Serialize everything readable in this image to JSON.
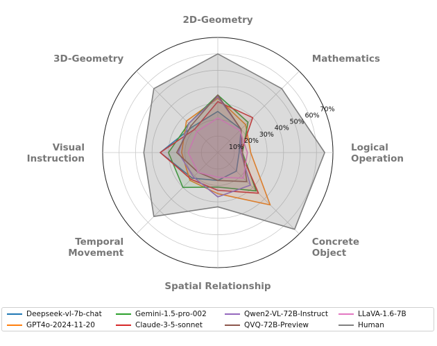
{
  "chart_data": {
    "type": "radar",
    "title": "",
    "axes": [
      "2D-Geometry",
      "Mathematics",
      "Logical\nOperation",
      "Concrete\nObject",
      "Spatial Relationship",
      "Temporal\nMovement",
      "Visual\nInstruction",
      "3D-Geometry"
    ],
    "rticks": [
      10,
      20,
      30,
      40,
      50,
      60,
      70
    ],
    "rtick_labels": [
      "10%",
      "20%",
      "30%",
      "40%",
      "50%",
      "60%",
      "70%"
    ],
    "rlim": [
      0,
      70
    ],
    "grid": true,
    "series": [
      {
        "name": "Deepseek-vl-7b-chat",
        "color": "#1f77b4",
        "values": [
          25,
          20,
          13,
          16,
          17,
          22,
          35,
          22
        ]
      },
      {
        "name": "GPT4o-2024-11-20",
        "color": "#ff7f0e",
        "values": [
          33,
          24,
          20,
          45,
          25,
          24,
          22,
          27
        ]
      },
      {
        "name": "Gemini-1.5-pro-002",
        "color": "#2ca02c",
        "values": [
          35,
          26,
          15,
          33,
          21,
          30,
          30,
          25
        ]
      },
      {
        "name": "Claude-3-5-sonnet",
        "color": "#d62728",
        "values": [
          31,
          30,
          14,
          35,
          23,
          23,
          35,
          20
        ]
      },
      {
        "name": "Qwen2-VL-72B-Instruct",
        "color": "#9467bd",
        "values": [
          34,
          20,
          14,
          28,
          27,
          21,
          24,
          25
        ]
      },
      {
        "name": "QVQ-72B-Preview",
        "color": "#8c564b",
        "values": [
          35,
          20,
          15,
          25,
          17,
          17,
          25,
          23
        ]
      },
      {
        "name": "LLaVA-1.6-7B",
        "color": "#e377c2",
        "values": [
          21,
          19,
          18,
          22,
          15,
          17,
          18,
          18
        ]
      },
      {
        "name": "Human",
        "color": "#7f7f7f",
        "values": [
          60,
          55,
          65,
          66,
          33,
          55,
          45,
          55
        ]
      }
    ]
  }
}
